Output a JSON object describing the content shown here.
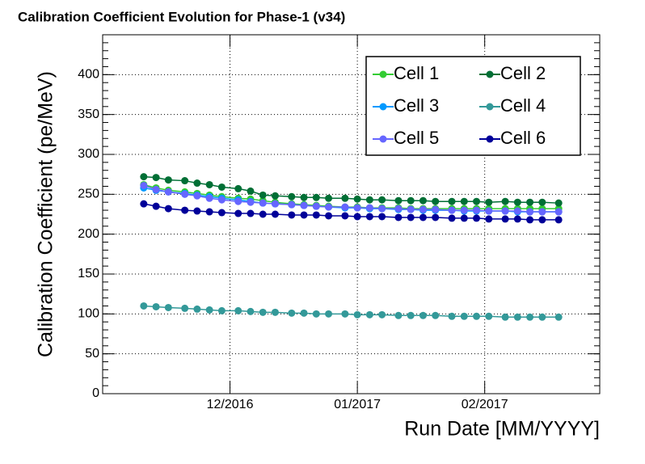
{
  "chart_data": {
    "type": "line",
    "title": "Calibration Coefficient Evolution for Phase-1 (v34)",
    "xlabel": "Run Date [MM/YYYY]",
    "ylabel": "Calibration Coefficient (pe/MeV)",
    "x": [
      -21,
      -18,
      -15,
      -11,
      -8,
      -5,
      -2,
      2,
      5,
      8,
      11,
      15,
      18,
      21,
      24,
      28,
      31,
      34,
      37,
      41,
      44,
      47,
      50,
      54,
      57,
      60,
      63,
      67,
      70,
      73,
      76,
      80
    ],
    "xlim": [
      -31,
      90
    ],
    "xticks": [
      {
        "value": 0,
        "label": "12/2016"
      },
      {
        "value": 31,
        "label": "01/2017"
      },
      {
        "value": 62,
        "label": "02/2017"
      }
    ],
    "ylim": [
      0,
      450
    ],
    "yticks": [
      0,
      50,
      100,
      150,
      200,
      250,
      300,
      350,
      400
    ],
    "grid": true,
    "legend": "top-right",
    "series": [
      {
        "name": "Cell 1",
        "color": "#33cc33",
        "values": [
          262,
          258,
          255,
          253,
          251,
          249,
          247,
          245,
          244,
          242,
          240,
          238,
          237,
          236,
          235,
          234,
          234,
          233,
          233,
          233,
          232,
          232,
          232,
          232,
          232,
          232,
          232,
          232,
          232,
          232,
          232,
          232
        ]
      },
      {
        "name": "Cell 2",
        "color": "#006f35",
        "values": [
          272,
          271,
          268,
          267,
          264,
          262,
          259,
          257,
          254,
          249,
          248,
          247,
          246,
          246,
          245,
          245,
          244,
          243,
          243,
          242,
          242,
          242,
          241,
          241,
          241,
          241,
          240,
          241,
          240,
          240,
          240,
          239
        ]
      },
      {
        "name": "Cell 3",
        "color": "#0099ff",
        "values": [
          258,
          255,
          253,
          251,
          249,
          247,
          245,
          243,
          241,
          239,
          238,
          237,
          236,
          235,
          234,
          233,
          233,
          232,
          232,
          231,
          231,
          230,
          230,
          230,
          229,
          229,
          229,
          229,
          228,
          228,
          228,
          228
        ]
      },
      {
        "name": "Cell 4",
        "color": "#339999",
        "values": [
          110,
          109,
          108,
          107,
          106,
          105,
          104,
          104,
          103,
          102,
          102,
          101,
          101,
          100,
          100,
          100,
          99,
          99,
          99,
          98,
          98,
          98,
          98,
          97,
          97,
          97,
          97,
          96,
          96,
          96,
          96,
          96
        ]
      },
      {
        "name": "Cell 5",
        "color": "#6666ff",
        "values": [
          261,
          256,
          253,
          250,
          248,
          245,
          243,
          241,
          240,
          239,
          238,
          237,
          236,
          235,
          234,
          234,
          233,
          233,
          232,
          232,
          231,
          231,
          231,
          230,
          230,
          230,
          229,
          229,
          229,
          228,
          228,
          228
        ]
      },
      {
        "name": "Cell 6",
        "color": "#000099",
        "values": [
          238,
          235,
          232,
          230,
          229,
          228,
          227,
          226,
          226,
          225,
          225,
          224,
          224,
          224,
          223,
          223,
          222,
          222,
          222,
          221,
          221,
          221,
          221,
          220,
          220,
          220,
          219,
          219,
          219,
          218,
          218,
          218
        ]
      }
    ]
  }
}
